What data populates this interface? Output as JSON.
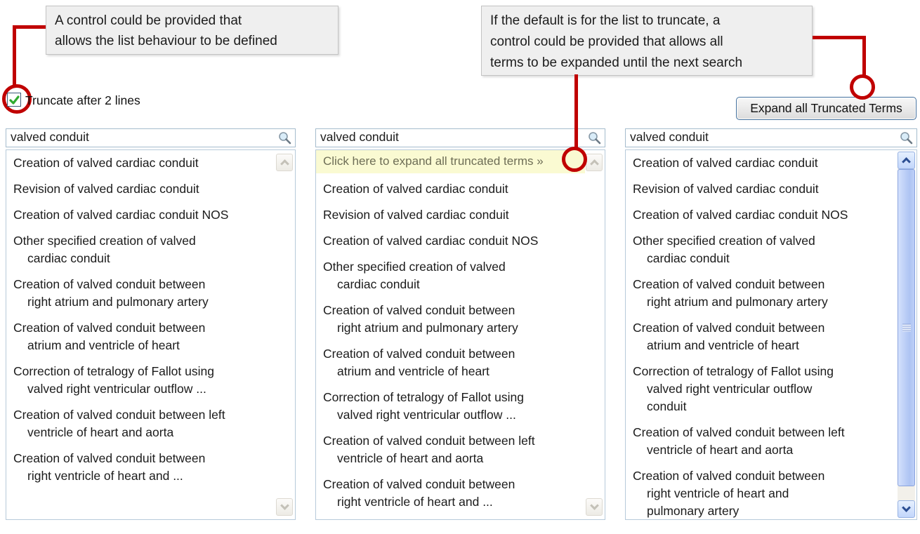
{
  "annotations": {
    "left_note": {
      "lines": [
        "A control could be provided that",
        "allows the list behaviour to be defined"
      ]
    },
    "right_note": {
      "lines": [
        "If the default is for the list to truncate, a",
        "control could be provided that allows all",
        "terms to be expanded until the next search"
      ]
    }
  },
  "truncate_control": {
    "label": "Truncate after 2 lines",
    "checked": true
  },
  "expand_button": {
    "label": "Expand all Truncated Terms"
  },
  "panels": [
    {
      "id": "truncated-list",
      "search_value": "valved conduit",
      "items": [
        [
          "Creation of valved cardiac conduit"
        ],
        [
          "Revision of valved cardiac conduit"
        ],
        [
          "Creation of valved cardiac conduit NOS"
        ],
        [
          "Other specified creation of valved",
          "cardiac conduit"
        ],
        [
          "Creation of valved conduit between",
          "right atrium and pulmonary artery"
        ],
        [
          "Creation of valved conduit between",
          "atrium and ventricle of heart"
        ],
        [
          "Correction of tetralogy of Fallot using",
          "valved right ventricular outflow ..."
        ],
        [
          "Creation of valved conduit between left",
          "ventricle of heart and aorta"
        ],
        [
          "Creation of valved conduit between",
          "right ventricle of heart and ..."
        ]
      ]
    },
    {
      "id": "truncated-list-with-expand-link",
      "search_value": "valved conduit",
      "expand_link_label": "Click here to expand all truncated terms »",
      "items": [
        [
          "Creation of valved cardiac conduit"
        ],
        [
          "Revision of valved cardiac conduit"
        ],
        [
          "Creation of valved cardiac conduit NOS"
        ],
        [
          "Other specified creation of valved",
          "cardiac conduit"
        ],
        [
          "Creation of valved conduit between",
          "right atrium and pulmonary artery"
        ],
        [
          "Creation of valved conduit between",
          "atrium and ventricle of heart"
        ],
        [
          "Correction of tetralogy of Fallot using",
          "valved right ventricular outflow ..."
        ],
        [
          "Creation of valved conduit between left",
          "ventricle of heart and aorta"
        ],
        [
          "Creation of valved conduit between",
          "right ventricle of heart and ..."
        ]
      ]
    },
    {
      "id": "expanded-list",
      "search_value": "valved conduit",
      "items": [
        [
          "Creation of valved cardiac conduit"
        ],
        [
          "Revision of valved cardiac conduit"
        ],
        [
          "Creation of valved cardiac conduit NOS"
        ],
        [
          "Other specified creation of valved",
          "cardiac conduit"
        ],
        [
          "Creation of valved conduit between",
          "right atrium and pulmonary artery"
        ],
        [
          "Creation of valved conduit between",
          "atrium and ventricle of heart"
        ],
        [
          "Correction of tetralogy of Fallot using",
          "valved right ventricular outflow",
          "conduit"
        ],
        [
          "Creation of valved conduit between left",
          "ventricle of heart and aorta"
        ],
        [
          "Creation of valved conduit between",
          "right ventricle of heart and",
          "pulmonary artery"
        ]
      ]
    }
  ],
  "icons": {
    "search_icon": "magnifying-glass",
    "checkbox_icon": "green-checkmark",
    "scroll_up_icon": "chevron-up",
    "scroll_down_icon": "chevron-down"
  },
  "colors": {
    "annotation_red": "#c00000",
    "note_background": "#efefef",
    "expand_link_background": "#fafad2",
    "expand_link_text": "#6e6e56",
    "check_green": "#2faa2f",
    "button_border_blue": "#44719e",
    "scrollbar_blue_thumb": "#aec4f3"
  }
}
